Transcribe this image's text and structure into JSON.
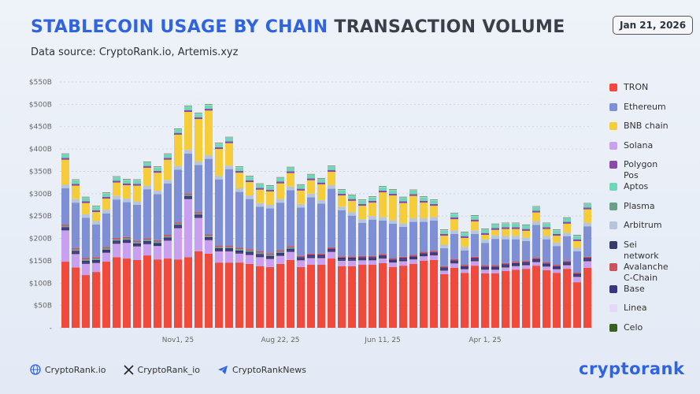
{
  "header": {
    "title_highlight": "STABLECOIN USAGE BY CHAIN",
    "title_rest": "TRANSACTION VOLUME",
    "subtitle": "Data source: CryptoRank.io, Artemis.xyz",
    "date": "Jan 21, 2026"
  },
  "chart_data": {
    "type": "stacked-bar",
    "categories": [
      null,
      null,
      null,
      null,
      null,
      null,
      null,
      null,
      null,
      null,
      null,
      "Nov1, 25",
      null,
      null,
      null,
      null,
      null,
      null,
      null,
      null,
      null,
      "Aug  22, 25",
      null,
      null,
      null,
      null,
      null,
      null,
      null,
      null,
      null,
      "Jun 11, 25",
      null,
      null,
      null,
      null,
      null,
      null,
      null,
      null,
      null,
      "Apr 1, 25",
      null,
      null,
      null,
      null,
      null,
      null,
      null,
      null,
      null,
      null
    ],
    "ylim": [
      0,
      550
    ],
    "yticks": [
      {
        "value": 0,
        "label": "-"
      },
      {
        "value": 50,
        "label": "$50B"
      },
      {
        "value": 100,
        "label": "$100B"
      },
      {
        "value": 150,
        "label": "$150B"
      },
      {
        "value": 200,
        "label": "$200B"
      },
      {
        "value": 250,
        "label": "$250B"
      },
      {
        "value": 300,
        "label": "$300B"
      },
      {
        "value": 350,
        "label": "$350B"
      },
      {
        "value": 400,
        "label": "$400B"
      },
      {
        "value": 450,
        "label": "$450B"
      },
      {
        "value": 500,
        "label": "$500B"
      },
      {
        "value": 550,
        "label": "$550B"
      }
    ],
    "grid": true,
    "series": [
      {
        "name": "TRON",
        "color": "#f04a3c",
        "values": [
          148,
          135,
          118,
          125,
          148,
          158,
          155,
          152,
          162,
          153,
          155,
          153,
          158,
          171,
          166,
          146,
          146,
          146,
          143,
          138,
          136,
          143,
          152,
          136,
          141,
          141,
          155,
          138,
          138,
          141,
          141,
          145,
          136,
          139,
          143,
          150,
          152,
          120,
          134,
          123,
          139,
          122,
          122,
          127,
          130,
          132,
          139,
          129,
          123,
          132,
          102,
          134
        ]
      },
      {
        "name": "Ethereum",
        "color": "#7f8fd6",
        "values": [
          81,
          102,
          90,
          73,
          75,
          86,
          78,
          80,
          110,
          103,
          115,
          118,
          89,
          105,
          169,
          148,
          171,
          125,
          112,
          100,
          100,
          106,
          125,
          108,
          126,
          112,
          131,
          103,
          91,
          74,
          81,
          75,
          77,
          67,
          74,
          67,
          68,
          40,
          56,
          32,
          51,
          50,
          59,
          53,
          50,
          44,
          73,
          51,
          42,
          55,
          47,
          68
        ]
      },
      {
        "name": "BNB chain",
        "color": "#f5cd3a",
        "values": [
          56,
          30,
          25,
          20,
          25,
          30,
          30,
          35,
          40,
          40,
          45,
          70,
          85,
          95,
          100,
          60,
          50,
          35,
          30,
          30,
          30,
          35,
          30,
          30,
          30,
          35,
          30,
          25,
          25,
          30,
          30,
          55,
          55,
          45,
          50,
          35,
          25,
          20,
          25,
          20,
          20,
          10,
          12,
          15,
          15,
          15,
          20,
          15,
          15,
          20,
          15,
          30
        ]
      },
      {
        "name": "Solana",
        "color": "#c9a0ef",
        "values": [
          70,
          30,
          25,
          20,
          20,
          30,
          35,
          30,
          25,
          30,
          40,
          70,
          130,
          75,
          30,
          25,
          25,
          20,
          20,
          20,
          18,
          18,
          18,
          15,
          15,
          15,
          15,
          12,
          12,
          10,
          10,
          10,
          10,
          10,
          10,
          10,
          10,
          8,
          10,
          8,
          10,
          8,
          8,
          8,
          8,
          8,
          8,
          8,
          8,
          8,
          12,
          15
        ]
      },
      {
        "name": "Polygon Pos",
        "color": "#8a4aa8",
        "values": [
          4,
          4,
          4,
          4,
          4,
          4,
          4,
          4,
          4,
          4,
          4,
          4,
          4,
          4,
          4,
          4,
          4,
          4,
          4,
          4,
          4,
          4,
          4,
          4,
          4,
          4,
          4,
          4,
          4,
          4,
          4,
          4,
          4,
          4,
          4,
          4,
          4,
          4,
          4,
          4,
          4,
          4,
          4,
          4,
          4,
          4,
          4,
          4,
          4,
          4,
          4,
          4
        ]
      },
      {
        "name": "Aptos",
        "color": "#6fd6b8",
        "values": [
          8,
          8,
          8,
          8,
          8,
          8,
          8,
          8,
          8,
          8,
          8,
          8,
          8,
          8,
          8,
          8,
          8,
          8,
          8,
          8,
          8,
          8,
          8,
          8,
          8,
          8,
          8,
          8,
          8,
          8,
          8,
          8,
          8,
          8,
          8,
          8,
          8,
          8,
          8,
          8,
          8,
          8,
          8,
          8,
          8,
          8,
          8,
          8,
          8,
          8,
          8,
          8
        ]
      },
      {
        "name": "Plasma",
        "color": "#6aa08a",
        "values": [
          3,
          3,
          3,
          3,
          3,
          3,
          3,
          3,
          3,
          3,
          3,
          3,
          3,
          3,
          3,
          3,
          3,
          3,
          3,
          3,
          3,
          3,
          3,
          0,
          0,
          0,
          0,
          0,
          0,
          0,
          0,
          0,
          0,
          0,
          0,
          0,
          0,
          0,
          0,
          0,
          0,
          0,
          0,
          0,
          0,
          0,
          0,
          0,
          0,
          0,
          0,
          0
        ]
      },
      {
        "name": "Arbitrum",
        "color": "#b6c4dc",
        "values": [
          8,
          8,
          8,
          8,
          8,
          8,
          8,
          8,
          8,
          8,
          8,
          8,
          8,
          8,
          8,
          8,
          8,
          8,
          8,
          8,
          8,
          8,
          8,
          8,
          8,
          8,
          8,
          8,
          8,
          8,
          8,
          8,
          8,
          8,
          8,
          8,
          8,
          8,
          8,
          8,
          8,
          8,
          8,
          8,
          8,
          8,
          8,
          8,
          8,
          8,
          8,
          8
        ]
      },
      {
        "name": "Sei network",
        "color": "#3a3a6a",
        "values": [
          3,
          3,
          3,
          3,
          3,
          3,
          3,
          3,
          3,
          3,
          3,
          3,
          3,
          3,
          3,
          3,
          3,
          3,
          3,
          3,
          3,
          3,
          3,
          3,
          3,
          3,
          3,
          3,
          3,
          3,
          3,
          3,
          3,
          3,
          3,
          3,
          3,
          3,
          3,
          3,
          3,
          3,
          3,
          3,
          3,
          3,
          3,
          3,
          3,
          3,
          3,
          3
        ]
      },
      {
        "name": "Avalanche C-Chain",
        "color": "#c9545c",
        "values": [
          3,
          3,
          3,
          3,
          3,
          3,
          3,
          3,
          3,
          3,
          3,
          3,
          3,
          3,
          3,
          3,
          3,
          3,
          3,
          3,
          3,
          3,
          3,
          3,
          3,
          3,
          3,
          3,
          3,
          3,
          3,
          3,
          3,
          3,
          3,
          3,
          3,
          3,
          3,
          3,
          3,
          3,
          3,
          3,
          3,
          3,
          3,
          3,
          3,
          3,
          3,
          3
        ]
      },
      {
        "name": "Base",
        "color": "#3a3580",
        "values": [
          4,
          4,
          4,
          4,
          4,
          4,
          4,
          4,
          4,
          4,
          4,
          4,
          4,
          4,
          4,
          4,
          4,
          4,
          4,
          4,
          4,
          4,
          4,
          4,
          4,
          4,
          4,
          4,
          4,
          4,
          4,
          4,
          4,
          4,
          4,
          4,
          4,
          4,
          4,
          4,
          4,
          4,
          4,
          4,
          4,
          4,
          4,
          4,
          4,
          4,
          4,
          4
        ]
      },
      {
        "name": "Linea",
        "color": "#e6d8f8",
        "values": [
          1,
          1,
          1,
          1,
          1,
          1,
          1,
          1,
          1,
          1,
          1,
          1,
          1,
          1,
          1,
          1,
          1,
          1,
          1,
          1,
          1,
          1,
          1,
          1,
          1,
          1,
          1,
          1,
          1,
          1,
          1,
          1,
          1,
          1,
          1,
          1,
          1,
          1,
          1,
          1,
          1,
          1,
          1,
          1,
          1,
          1,
          1,
          1,
          1,
          1,
          1,
          1
        ]
      },
      {
        "name": "Celo",
        "color": "#3a6020",
        "values": [
          1,
          1,
          1,
          1,
          1,
          1,
          1,
          1,
          1,
          1,
          1,
          1,
          1,
          1,
          1,
          1,
          1,
          1,
          1,
          1,
          1,
          1,
          1,
          1,
          1,
          1,
          1,
          1,
          1,
          1,
          1,
          1,
          1,
          1,
          1,
          1,
          1,
          1,
          1,
          1,
          1,
          1,
          1,
          1,
          1,
          1,
          1,
          1,
          1,
          1,
          1,
          1
        ]
      }
    ]
  },
  "footer": {
    "links": [
      "CryptoRank.io",
      "CryptoRank_io",
      "CryptoRankNews"
    ],
    "logo": "cryptorank"
  }
}
